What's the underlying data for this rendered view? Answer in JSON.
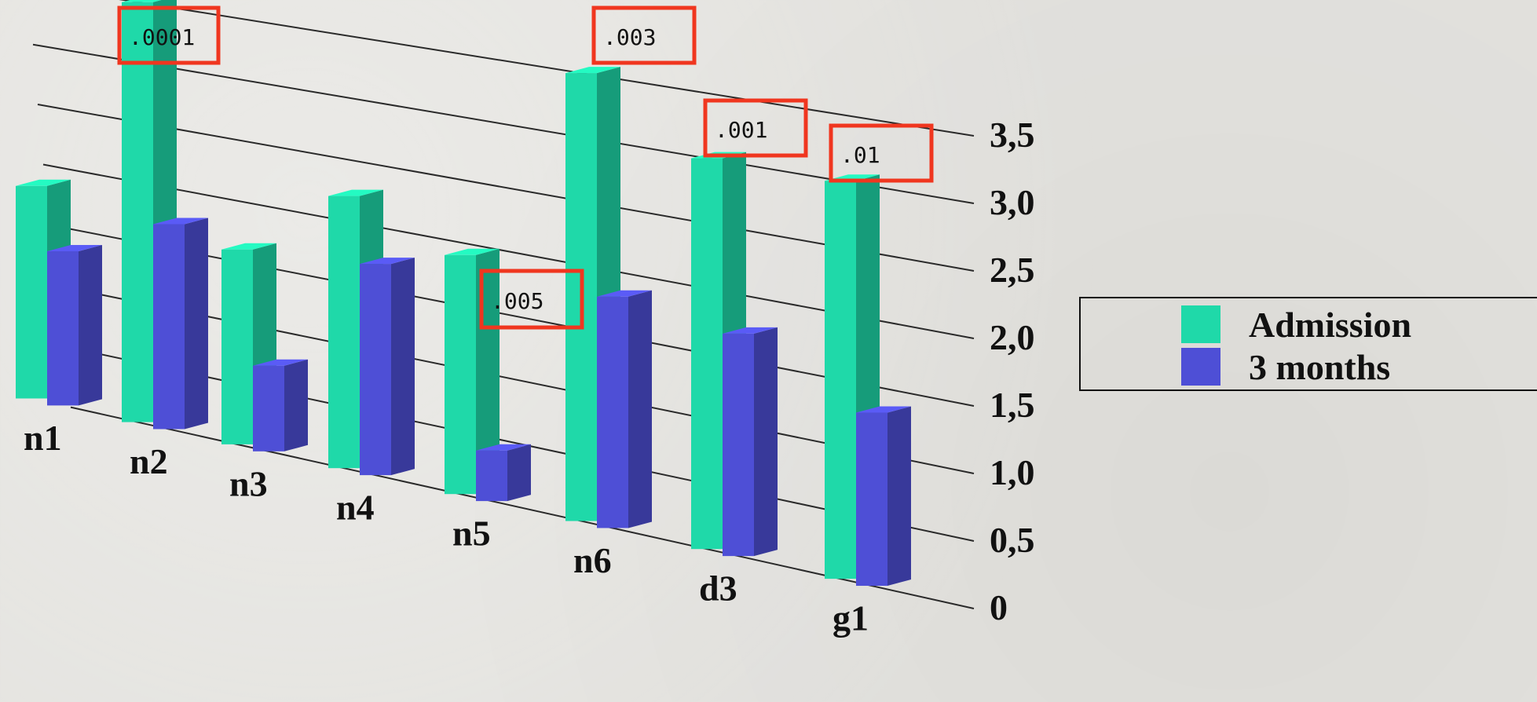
{
  "colors": {
    "admission": "#1fd9a9",
    "three_months": "#4e4fd6",
    "annotation_box": "#f0361f",
    "gridline": "#2a2a2a"
  },
  "legend": {
    "items": [
      {
        "label": "Admission",
        "color": "#1fd9a9"
      },
      {
        "label": "3 months",
        "color": "#4e4fd6"
      }
    ]
  },
  "chart_data": {
    "type": "bar",
    "style": "3d-perspective",
    "categories": [
      "n1",
      "n2",
      "n3",
      "n4",
      "n5",
      "n6",
      "d3",
      "g1"
    ],
    "series": [
      {
        "name": "Admission",
        "values": [
          1.8,
          3.5,
          1.6,
          2.2,
          1.9,
          3.5,
          3.0,
          3.0
        ]
      },
      {
        "name": "3 months",
        "values": [
          1.3,
          1.7,
          0.7,
          1.7,
          0.4,
          1.8,
          1.7,
          1.3
        ]
      }
    ],
    "y_tick_labels": [
      "0",
      "0,5",
      "1,0",
      "1,5",
      "2,0",
      "2,5",
      "3,0",
      "3,5"
    ],
    "ylim": [
      0,
      3.5
    ],
    "grid": true,
    "legend_position": "right",
    "annotations": [
      {
        "category": "n2",
        "text": ".0001"
      },
      {
        "category": "n5",
        "text": ".005"
      },
      {
        "category": "n6",
        "text": ".003"
      },
      {
        "category": "d3",
        "text": ".001"
      },
      {
        "category": "g1",
        "text": ".01"
      }
    ]
  }
}
